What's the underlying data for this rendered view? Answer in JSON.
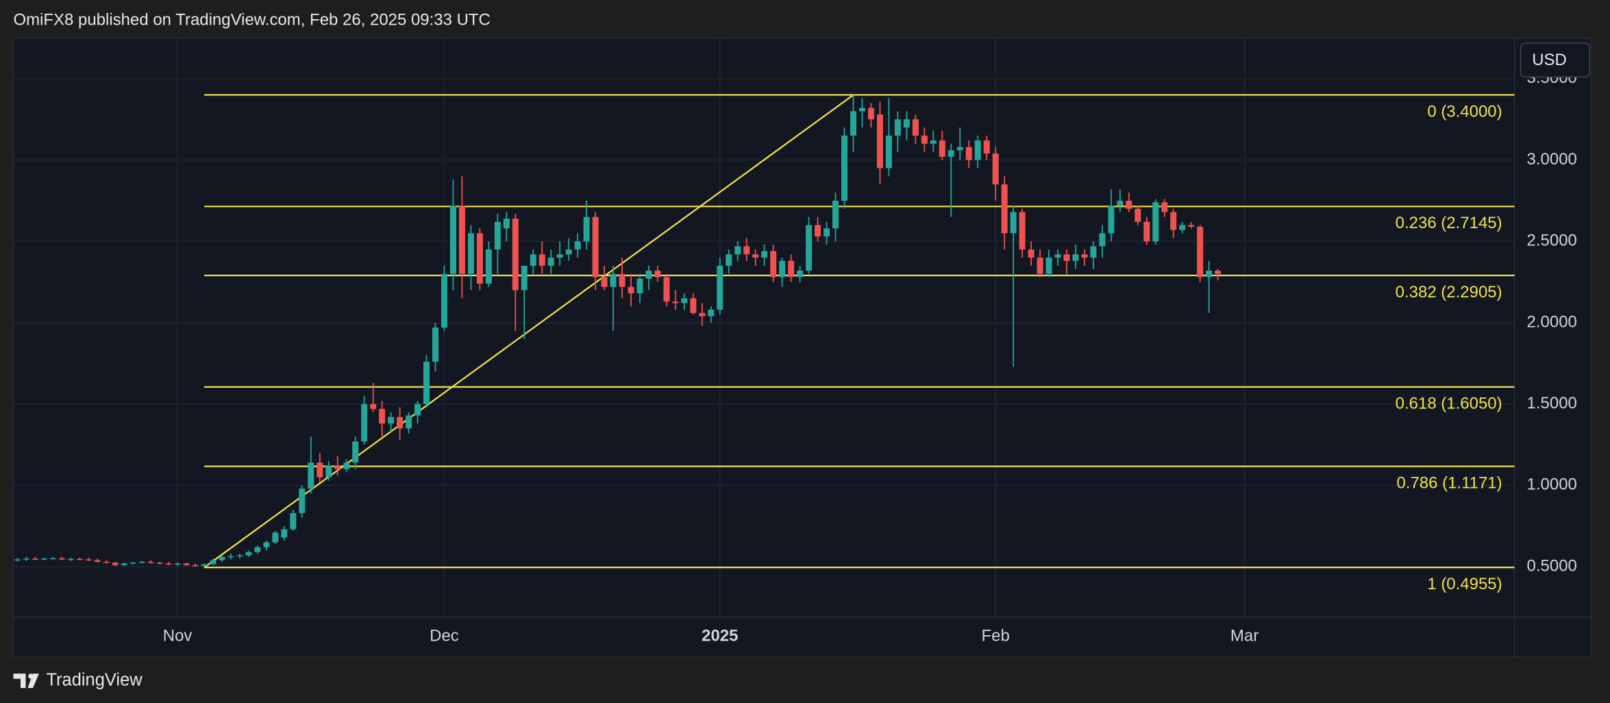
{
  "header": "OmiFX8 published on TradingView.com, Feb 26, 2025 09:33 UTC",
  "footer": "TradingView",
  "chart_data": {
    "type": "candlestick",
    "currency": "USD",
    "up_color": "#26a69a",
    "down_color": "#ef5350",
    "fib_color": "#f2e14b",
    "grid": true,
    "ylim": [
      0.19,
      3.75
    ],
    "yticks": [
      {
        "value": 0.5,
        "label": "0.5000"
      },
      {
        "value": 1.0,
        "label": "1.0000"
      },
      {
        "value": 1.5,
        "label": "1.5000"
      },
      {
        "value": 2.0,
        "label": "2.0000"
      },
      {
        "value": 2.5,
        "label": "2.5000"
      },
      {
        "value": 3.0,
        "label": "3.0000"
      },
      {
        "value": 3.5,
        "label": "3.5000"
      }
    ],
    "fib_levels": [
      {
        "value": 3.4,
        "label": "0 (3.4000)"
      },
      {
        "value": 2.7145,
        "label": "0.236 (2.7145)"
      },
      {
        "value": 2.2905,
        "label": "0.382 (2.2905)"
      },
      {
        "value": 1.605,
        "label": "0.618 (1.6050)"
      },
      {
        "value": 1.1171,
        "label": "0.786 (1.1171)"
      },
      {
        "value": 0.4955,
        "label": "1 (0.4955)"
      }
    ],
    "categories": [
      null,
      null,
      null,
      null,
      null,
      null,
      null,
      null,
      null,
      null,
      null,
      null,
      null,
      null,
      null,
      null,
      null,
      null,
      "Nov",
      null,
      null,
      null,
      null,
      null,
      null,
      null,
      null,
      null,
      null,
      null,
      null,
      null,
      null,
      null,
      null,
      null,
      null,
      null,
      null,
      null,
      null,
      null,
      null,
      null,
      null,
      null,
      null,
      null,
      "Dec",
      null,
      null,
      null,
      null,
      null,
      null,
      null,
      null,
      null,
      null,
      null,
      null,
      null,
      null,
      null,
      null,
      null,
      null,
      null,
      null,
      null,
      null,
      null,
      null,
      null,
      null,
      null,
      null,
      null,
      null,
      "2025",
      null,
      null,
      null,
      null,
      null,
      null,
      null,
      null,
      null,
      null,
      null,
      null,
      null,
      null,
      null,
      null,
      null,
      null,
      null,
      null,
      null,
      null,
      null,
      null,
      null,
      null,
      null,
      null,
      null,
      null,
      "Feb",
      null,
      null,
      null,
      null,
      null,
      null,
      null,
      null,
      null,
      null,
      null,
      null,
      null,
      null,
      null,
      null,
      null,
      null,
      null,
      null,
      null,
      null,
      null,
      null,
      null,
      null,
      null,
      "Mar",
      null,
      null,
      null,
      null,
      null,
      null,
      null,
      null,
      null,
      null,
      null,
      null,
      null,
      null,
      null,
      null,
      null,
      null,
      null,
      null,
      null,
      null,
      null,
      null,
      null,
      null,
      null,
      null,
      null,
      null,
      null
    ],
    "open": [
      0.54,
      0.545,
      0.55,
      0.548,
      0.55,
      0.552,
      0.545,
      0.548,
      0.545,
      0.54,
      0.53,
      0.525,
      0.51,
      0.52,
      0.525,
      0.53,
      0.525,
      0.52,
      0.515,
      0.52,
      0.51,
      0.505,
      0.515,
      0.54,
      0.56,
      0.565,
      0.57,
      0.59,
      0.62,
      0.65,
      0.68,
      0.73,
      0.83,
      0.98,
      1.14,
      1.05,
      1.12,
      1.1,
      1.14,
      1.27,
      1.5,
      1.47,
      1.38,
      1.42,
      1.35,
      1.43,
      1.5,
      1.76,
      1.97,
      2.3,
      2.72,
      2.3,
      2.55,
      2.24,
      2.45,
      2.58,
      2.64,
      2.2,
      2.35,
      2.42,
      2.35,
      2.4,
      2.42,
      2.45,
      2.5,
      2.65,
      2.28,
      2.22,
      2.3,
      2.22,
      2.18,
      2.27,
      2.32,
      2.28,
      2.13,
      2.12,
      2.15,
      2.06,
      2.04,
      2.08,
      2.35,
      2.42,
      2.47,
      2.42,
      2.4,
      2.44,
      2.28,
      2.38,
      2.28,
      2.32,
      2.6,
      2.53,
      2.58,
      2.75,
      3.15,
      3.3,
      3.32,
      3.28,
      2.95,
      3.15,
      3.2,
      3.25,
      3.15,
      3.1,
      3.12,
      3.02,
      3.06,
      3.08,
      3.0,
      3.12,
      3.04,
      2.85,
      2.55,
      2.68,
      2.45,
      2.4,
      2.3,
      2.4,
      2.42,
      2.38,
      2.42,
      2.4,
      2.47,
      2.55,
      2.72,
      2.75,
      2.7,
      2.62,
      2.5,
      2.74,
      2.68,
      2.57,
      2.6,
      2.59,
      2.28,
      2.32,
      null,
      null,
      null,
      null,
      null,
      null,
      null,
      null,
      null,
      null,
      null,
      null,
      null,
      null,
      null,
      null,
      null,
      null,
      null,
      null,
      null,
      null,
      null,
      null,
      null,
      null,
      null,
      null,
      null,
      null,
      null,
      null,
      null,
      null
    ],
    "high": [
      0.555,
      0.56,
      0.56,
      0.555,
      0.56,
      0.56,
      0.555,
      0.555,
      0.555,
      0.55,
      0.54,
      0.53,
      0.525,
      0.53,
      0.535,
      0.54,
      0.53,
      0.53,
      0.525,
      0.525,
      0.52,
      0.52,
      0.55,
      0.57,
      0.58,
      0.58,
      0.6,
      0.63,
      0.66,
      0.72,
      0.75,
      0.85,
      1.0,
      1.3,
      1.2,
      1.15,
      1.18,
      1.16,
      1.3,
      1.55,
      1.63,
      1.52,
      1.45,
      1.48,
      1.45,
      1.52,
      1.8,
      2.0,
      2.35,
      2.88,
      2.9,
      2.6,
      2.58,
      2.5,
      2.67,
      2.68,
      2.67,
      2.35,
      2.45,
      2.5,
      2.45,
      2.5,
      2.52,
      2.55,
      2.75,
      2.68,
      2.35,
      2.35,
      2.4,
      2.3,
      2.3,
      2.35,
      2.35,
      2.3,
      2.2,
      2.18,
      2.18,
      2.12,
      2.1,
      2.4,
      2.45,
      2.5,
      2.52,
      2.45,
      2.48,
      2.48,
      2.4,
      2.42,
      2.35,
      2.65,
      2.65,
      2.62,
      2.8,
      3.2,
      3.4,
      3.38,
      3.35,
      3.36,
      3.38,
      3.3,
      3.3,
      3.28,
      3.2,
      3.18,
      3.18,
      3.1,
      3.2,
      3.12,
      3.15,
      3.15,
      3.08,
      2.9,
      2.72,
      2.7,
      2.5,
      2.45,
      2.45,
      2.45,
      2.45,
      2.48,
      2.45,
      2.5,
      2.6,
      2.82,
      2.82,
      2.8,
      2.72,
      2.65,
      2.76,
      2.76,
      2.7,
      2.62,
      2.62,
      2.6,
      2.38,
      2.33,
      null,
      null,
      null,
      null,
      null,
      null,
      null,
      null,
      null,
      null,
      null,
      null,
      null,
      null,
      null,
      null,
      null,
      null,
      null,
      null,
      null,
      null,
      null,
      null,
      null,
      null,
      null,
      null,
      null,
      null,
      null,
      null,
      null,
      null
    ],
    "low": [
      0.53,
      0.535,
      0.54,
      0.54,
      0.545,
      0.54,
      0.535,
      0.54,
      0.535,
      0.525,
      0.52,
      0.505,
      0.505,
      0.515,
      0.52,
      0.52,
      0.515,
      0.51,
      0.505,
      0.505,
      0.5,
      0.4955,
      0.51,
      0.53,
      0.545,
      0.55,
      0.56,
      0.58,
      0.6,
      0.64,
      0.66,
      0.72,
      0.8,
      0.95,
      1.02,
      1.03,
      1.06,
      1.08,
      1.1,
      1.25,
      1.45,
      1.3,
      1.33,
      1.28,
      1.32,
      1.38,
      1.48,
      1.7,
      1.95,
      2.2,
      2.15,
      2.2,
      2.2,
      2.22,
      2.3,
      2.5,
      1.95,
      1.9,
      2.3,
      2.3,
      2.3,
      2.35,
      2.38,
      2.4,
      2.45,
      2.2,
      2.2,
      1.95,
      2.15,
      2.1,
      2.12,
      2.2,
      2.25,
      2.1,
      2.08,
      2.08,
      2.05,
      1.98,
      2.0,
      2.05,
      2.3,
      2.38,
      2.38,
      2.35,
      2.35,
      2.25,
      2.22,
      2.25,
      2.25,
      2.3,
      2.5,
      2.48,
      2.5,
      2.7,
      3.05,
      3.2,
      3.2,
      2.85,
      2.9,
      3.05,
      3.12,
      3.1,
      3.05,
      3.05,
      3.0,
      2.65,
      3.0,
      2.95,
      2.95,
      3.0,
      2.75,
      2.45,
      1.73,
      2.4,
      2.35,
      2.28,
      2.28,
      2.35,
      2.3,
      2.33,
      2.35,
      2.33,
      2.4,
      2.5,
      2.68,
      2.68,
      2.6,
      2.48,
      2.48,
      2.65,
      2.52,
      2.55,
      2.58,
      2.25,
      2.06,
      2.26,
      null,
      null,
      null,
      null,
      null,
      null,
      null,
      null,
      null,
      null,
      null,
      null,
      null,
      null,
      null,
      null,
      null,
      null,
      null,
      null,
      null,
      null,
      null,
      null,
      null,
      null,
      null,
      null,
      null,
      null,
      null,
      null,
      null,
      null
    ],
    "close": [
      0.545,
      0.55,
      0.548,
      0.55,
      0.552,
      0.545,
      0.548,
      0.545,
      0.54,
      0.53,
      0.525,
      0.51,
      0.52,
      0.525,
      0.53,
      0.525,
      0.52,
      0.515,
      0.52,
      0.51,
      0.505,
      0.515,
      0.54,
      0.56,
      0.565,
      0.57,
      0.59,
      0.62,
      0.65,
      0.71,
      0.73,
      0.83,
      0.98,
      1.14,
      1.05,
      1.12,
      1.1,
      1.14,
      1.27,
      1.5,
      1.47,
      1.38,
      1.42,
      1.35,
      1.43,
      1.5,
      1.76,
      1.97,
      2.3,
      2.72,
      2.3,
      2.55,
      2.24,
      2.45,
      2.62,
      2.64,
      2.2,
      2.35,
      2.42,
      2.35,
      2.4,
      2.42,
      2.45,
      2.5,
      2.65,
      2.28,
      2.22,
      2.3,
      2.22,
      2.18,
      2.27,
      2.32,
      2.28,
      2.13,
      2.12,
      2.15,
      2.06,
      2.04,
      2.08,
      2.35,
      2.42,
      2.47,
      2.42,
      2.4,
      2.44,
      2.28,
      2.38,
      2.28,
      2.32,
      2.6,
      2.53,
      2.58,
      2.75,
      3.15,
      3.3,
      3.32,
      3.25,
      2.95,
      3.15,
      3.25,
      3.25,
      3.15,
      3.1,
      3.12,
      3.02,
      3.06,
      3.08,
      3.0,
      3.12,
      3.04,
      2.85,
      2.55,
      2.68,
      2.45,
      2.4,
      2.3,
      2.4,
      2.42,
      2.38,
      2.42,
      2.4,
      2.47,
      2.55,
      2.72,
      2.75,
      2.7,
      2.62,
      2.5,
      2.74,
      2.68,
      2.57,
      2.6,
      2.59,
      2.28,
      2.32,
      2.3,
      null,
      null,
      null,
      null,
      null,
      null,
      null,
      null,
      null,
      null,
      null,
      null,
      null,
      null,
      null,
      null,
      null,
      null,
      null,
      null,
      null,
      null,
      null,
      null,
      null,
      null,
      null,
      null,
      null,
      null,
      null,
      null,
      null,
      null
    ]
  }
}
